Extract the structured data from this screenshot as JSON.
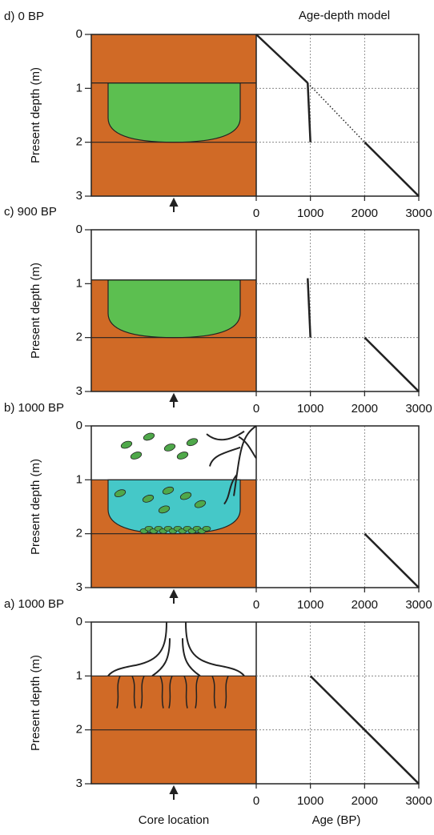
{
  "figure": {
    "title": "Age-depth model",
    "footer": "Core location"
  },
  "chart_data": [
    {
      "type": "line",
      "title": "d) 0 BP",
      "ylabel": "Present depth (m)",
      "ylim": [
        0,
        3
      ],
      "yticks": [
        0,
        1,
        2,
        3
      ],
      "y_inverted": true,
      "xlim": [
        0,
        3000
      ],
      "xticks": [
        0,
        1000,
        2000,
        3000
      ],
      "grid": true,
      "series": [
        {
          "color": "#222222",
          "linestyle": "solid",
          "x": [
            0,
            950
          ],
          "values": [
            0,
            0.9
          ]
        },
        {
          "color": "#222222",
          "linestyle": "solid",
          "x": [
            950,
            1000
          ],
          "values": [
            0.9,
            2
          ]
        },
        {
          "color": "#222222",
          "linestyle": "dotted",
          "x": [
            950,
            2000
          ],
          "values": [
            0.9,
            2
          ]
        },
        {
          "color": "#222222",
          "linestyle": "solid",
          "x": [
            2000,
            3000
          ],
          "values": [
            2,
            3
          ]
        }
      ]
    },
    {
      "type": "line",
      "title": "c) 900 BP",
      "ylabel": "Present depth (m)",
      "ylim": [
        0,
        3
      ],
      "yticks": [
        0,
        1,
        2,
        3
      ],
      "y_inverted": true,
      "xlim": [
        0,
        3000
      ],
      "xticks": [
        0,
        1000,
        2000,
        3000
      ],
      "grid": true,
      "series": [
        {
          "color": "#222222",
          "linestyle": "solid",
          "x": [
            950,
            1000
          ],
          "values": [
            0.9,
            2
          ]
        },
        {
          "color": "#222222",
          "linestyle": "solid",
          "x": [
            2000,
            3000
          ],
          "values": [
            2,
            3
          ]
        }
      ]
    },
    {
      "type": "line",
      "title": "b) 1000 BP",
      "ylabel": "Present depth (m)",
      "ylim": [
        0,
        3
      ],
      "yticks": [
        0,
        1,
        2,
        3
      ],
      "y_inverted": true,
      "xlim": [
        0,
        3000
      ],
      "xticks": [
        0,
        1000,
        2000,
        3000
      ],
      "grid": true,
      "series": [
        {
          "color": "#222222",
          "linestyle": "solid",
          "x": [
            2000,
            3000
          ],
          "values": [
            2,
            3
          ]
        }
      ]
    },
    {
      "type": "line",
      "title": "a) 1000 BP",
      "ylabel": "Present depth (m)",
      "ylim": [
        0,
        3
      ],
      "yticks": [
        0,
        1,
        2,
        3
      ],
      "y_inverted": true,
      "xlim": [
        0,
        3000
      ],
      "xticks": [
        0,
        1000,
        2000,
        3000
      ],
      "grid": true,
      "xlabel": "Age (BP)",
      "series": [
        {
          "color": "#222222",
          "linestyle": "solid",
          "x": [
            1000,
            3000
          ],
          "values": [
            1,
            3
          ]
        }
      ]
    }
  ]
}
